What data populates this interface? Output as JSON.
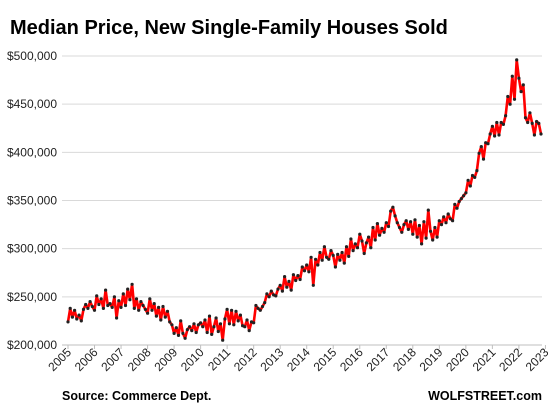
{
  "chart_data": {
    "type": "line",
    "title": "Median Price, New Single-Family Houses Sold",
    "source": "Source: Commerce Dept.",
    "brand": "WOLFSTREET.com",
    "xlabel": "",
    "ylabel": "",
    "ylim": [
      200000,
      500000
    ],
    "y_ticks": [
      200000,
      250000,
      300000,
      350000,
      400000,
      450000,
      500000
    ],
    "y_tick_labels": [
      "$200,000",
      "$250,000",
      "$300,000",
      "$350,000",
      "$400,000",
      "$450,000",
      "$500,000"
    ],
    "x_tick_labels": [
      "2005",
      "2006",
      "2007",
      "2008",
      "2009",
      "2010",
      "2011",
      "2012",
      "2013",
      "2014",
      "2015",
      "2016",
      "2017",
      "2018",
      "2019",
      "2020",
      "2021",
      "2022",
      "2023"
    ],
    "grid": true,
    "colors": {
      "line": "#ff0000",
      "marker": "#222222",
      "grid": "#d9d9d9"
    },
    "series": [
      {
        "start": "2005-01",
        "frequency": "monthly",
        "values": [
          224000,
          238000,
          229000,
          236000,
          227000,
          231000,
          225000,
          237000,
          242000,
          238000,
          245000,
          240000,
          236000,
          251000,
          242000,
          248000,
          238000,
          257000,
          241000,
          243000,
          239000,
          250000,
          228000,
          246000,
          239000,
          253000,
          241000,
          258000,
          247000,
          263000,
          238000,
          248000,
          236000,
          245000,
          241000,
          237000,
          233000,
          248000,
          236000,
          243000,
          230000,
          239000,
          226000,
          240000,
          229000,
          235000,
          224000,
          221000,
          212000,
          218000,
          210000,
          225000,
          212000,
          207000,
          216000,
          219000,
          215000,
          222000,
          213000,
          221000,
          223000,
          219000,
          226000,
          213000,
          230000,
          211000,
          219000,
          228000,
          214000,
          222000,
          205000,
          227000,
          237000,
          222000,
          236000,
          221000,
          235000,
          225000,
          231000,
          220000,
          219000,
          226000,
          215000,
          224000,
          223000,
          241000,
          238000,
          236000,
          240000,
          244000,
          253000,
          250000,
          256000,
          252000,
          251000,
          258000,
          262000,
          256000,
          271000,
          260000,
          266000,
          257000,
          273000,
          267000,
          272000,
          268000,
          281000,
          277000,
          283000,
          276000,
          291000,
          262000,
          289000,
          283000,
          296000,
          288000,
          302000,
          291000,
          289000,
          298000,
          293000,
          281000,
          294000,
          288000,
          296000,
          285000,
          302000,
          292000,
          310000,
          298000,
          305000,
          301000,
          315000,
          308000,
          295000,
          306000,
          312000,
          301000,
          322000,
          309000,
          326000,
          314000,
          321000,
          317000,
          327000,
          323000,
          339000,
          343000,
          334000,
          327000,
          322000,
          317000,
          325000,
          329000,
          320000,
          328000,
          315000,
          330000,
          312000,
          324000,
          305000,
          328000,
          311000,
          340000,
          318000,
          309000,
          322000,
          312000,
          329000,
          325000,
          333000,
          327000,
          336000,
          331000,
          329000,
          346000,
          342000,
          349000,
          352000,
          355000,
          358000,
          371000,
          365000,
          376000,
          374000,
          381000,
          399000,
          406000,
          393000,
          410000,
          409000,
          419000,
          427000,
          417000,
          431000,
          418000,
          431000,
          429000,
          438000,
          458000,
          450000,
          479000,
          455000,
          496000,
          477000,
          463000,
          470000,
          436000,
          431000,
          441000,
          430000,
          418000,
          432000,
          430000,
          419000
        ]
      }
    ]
  }
}
